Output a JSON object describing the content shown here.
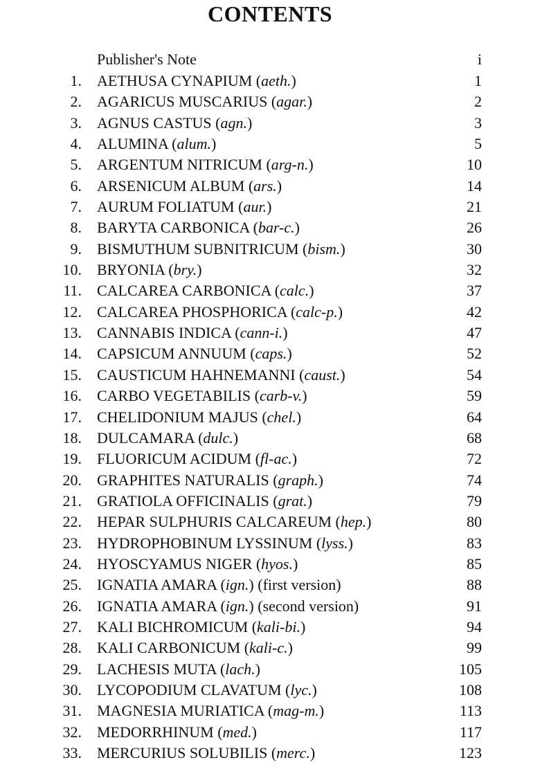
{
  "title": "CONTENTS",
  "preface": {
    "label": "Publisher's Note",
    "page": "i"
  },
  "entries": [
    {
      "num": "1.",
      "name": "AETHUSA CYNAPIUM",
      "abbr": "aeth.",
      "suffix": "",
      "page": "1"
    },
    {
      "num": "2.",
      "name": "AGARICUS MUSCARIUS",
      "abbr": "agar.",
      "suffix": "",
      "page": "2"
    },
    {
      "num": "3.",
      "name": "AGNUS CASTUS",
      "abbr": "agn.",
      "suffix": "",
      "page": "3"
    },
    {
      "num": "4.",
      "name": "ALUMINA",
      "abbr": "alum.",
      "suffix": "",
      "page": "5"
    },
    {
      "num": "5.",
      "name": "ARGENTUM NITRICUM",
      "abbr": "arg-n.",
      "suffix": "",
      "page": "10"
    },
    {
      "num": "6.",
      "name": "ARSENICUM ALBUM",
      "abbr": "ars.",
      "suffix": "",
      "page": "14"
    },
    {
      "num": "7.",
      "name": "AURUM FOLIATUM",
      "abbr": "aur.",
      "suffix": "",
      "page": "21"
    },
    {
      "num": "8.",
      "name": "BARYTA CARBONICA",
      "abbr": "bar-c.",
      "suffix": "",
      "page": "26"
    },
    {
      "num": "9.",
      "name": "BISMUTHUM SUBNITRICUM",
      "abbr": "bism.",
      "suffix": "",
      "page": "30"
    },
    {
      "num": "10.",
      "name": "BRYONIA",
      "abbr": "bry.",
      "suffix": "",
      "page": "32"
    },
    {
      "num": "11.",
      "name": "CALCAREA CARBONICA",
      "abbr": "calc.",
      "suffix": "",
      "page": "37"
    },
    {
      "num": "12.",
      "name": "CALCAREA PHOSPHORICA",
      "abbr": "calc-p.",
      "suffix": "",
      "page": "42"
    },
    {
      "num": "13.",
      "name": "CANNABIS INDICA",
      "abbr": "cann-i.",
      "suffix": "",
      "page": "47"
    },
    {
      "num": "14.",
      "name": "CAPSICUM ANNUUM",
      "abbr": "caps.",
      "suffix": "",
      "page": "52"
    },
    {
      "num": "15.",
      "name": "CAUSTICUM HAHNEMANNI",
      "abbr": "caust.",
      "suffix": "",
      "page": "54"
    },
    {
      "num": "16.",
      "name": "CARBO VEGETABILIS",
      "abbr": "carb-v.",
      "suffix": "",
      "page": "59"
    },
    {
      "num": "17.",
      "name": "CHELIDONIUM MAJUS",
      "abbr": "chel.",
      "suffix": "",
      "page": "64"
    },
    {
      "num": "18.",
      "name": "DULCAMARA",
      "abbr": "dulc.",
      "suffix": "",
      "page": "68"
    },
    {
      "num": "19.",
      "name": "FLUORICUM ACIDUM",
      "abbr": "fl-ac.",
      "suffix": "",
      "page": "72"
    },
    {
      "num": "20.",
      "name": "GRAPHITES NATURALIS",
      "abbr": "graph.",
      "suffix": "",
      "page": "74"
    },
    {
      "num": "21.",
      "name": "GRATIOLA OFFICINALIS",
      "abbr": "grat.",
      "suffix": "",
      "page": "79"
    },
    {
      "num": "22.",
      "name": "HEPAR SULPHURIS CALCAREUM",
      "abbr": "hep.",
      "suffix": "",
      "page": "80"
    },
    {
      "num": "23.",
      "name": "HYDROPHOBINUM LYSSINUM",
      "abbr": "lyss.",
      "suffix": "",
      "page": "83"
    },
    {
      "num": "24.",
      "name": "HYOSCYAMUS NIGER",
      "abbr": "hyos.",
      "suffix": "",
      "page": "85"
    },
    {
      "num": "25.",
      "name": "IGNATIA AMARA",
      "abbr": "ign.",
      "suffix": " (first version)",
      "page": "88"
    },
    {
      "num": "26.",
      "name": "IGNATIA AMARA",
      "abbr": "ign.",
      "suffix": " (second version)",
      "page": "91"
    },
    {
      "num": "27.",
      "name": "KALI BICHROMICUM",
      "abbr": "kali-bi.",
      "suffix": "",
      "page": "94"
    },
    {
      "num": "28.",
      "name": "KALI CARBONICUM",
      "abbr": "kali-c.",
      "suffix": "",
      "page": "99"
    },
    {
      "num": "29.",
      "name": "LACHESIS MUTA",
      "abbr": "lach.",
      "suffix": "",
      "page": "105"
    },
    {
      "num": "30.",
      "name": "LYCOPODIUM CLAVATUM",
      "abbr": "lyc.",
      "suffix": "",
      "page": "108"
    },
    {
      "num": "31.",
      "name": "MAGNESIA MURIATICA",
      "abbr": "mag-m.",
      "suffix": "",
      "page": "113"
    },
    {
      "num": "32.",
      "name": "MEDORRHINUM",
      "abbr": "med.",
      "suffix": "",
      "page": "117"
    },
    {
      "num": "33.",
      "name": "MERCURIUS SOLUBILIS",
      "abbr": "merc.",
      "suffix": "",
      "page": "123"
    }
  ]
}
